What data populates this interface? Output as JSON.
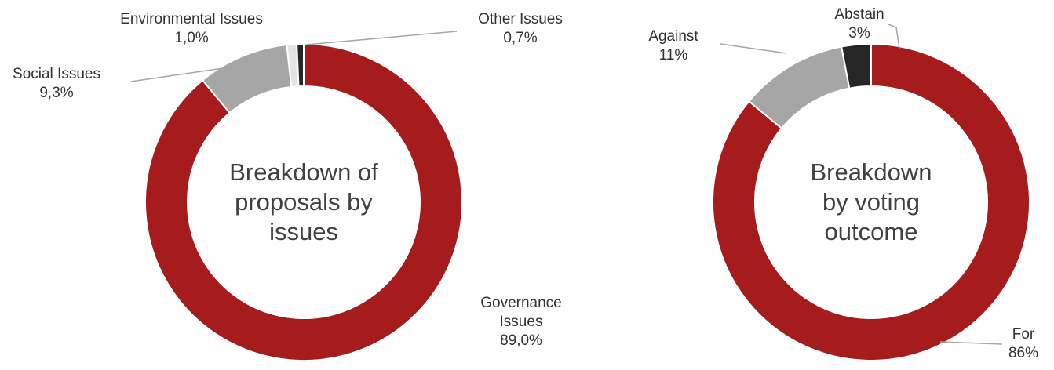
{
  "colors": {
    "red": "#a61b1b",
    "gray": "#a6a6a6",
    "light": "#e3e3e3",
    "dark": "#262626",
    "leader": "#a6a6a6",
    "text": "#333333",
    "center_text": "#404040"
  },
  "chart_data": [
    {
      "type": "pie",
      "donut": true,
      "center_label": [
        "Breakdown of",
        "proposals by",
        "issues"
      ],
      "slices": [
        {
          "label": [
            "Governance",
            "Issues"
          ],
          "value": 89.0,
          "display": "89,0%",
          "color": "#a61b1b"
        },
        {
          "label": [
            "Social Issues"
          ],
          "value": 9.3,
          "display": "9,3%",
          "color": "#a6a6a6"
        },
        {
          "label": [
            "Environmental Issues"
          ],
          "value": 1.0,
          "display": "1,0%",
          "color": "#e3e3e3"
        },
        {
          "label": [
            "Other Issues"
          ],
          "value": 0.7,
          "display": "0,7%",
          "color": "#262626"
        }
      ]
    },
    {
      "type": "pie",
      "donut": true,
      "center_label": [
        "Breakdown",
        "by voting",
        "outcome"
      ],
      "slices": [
        {
          "label": [
            "For"
          ],
          "value": 86,
          "display": "86%",
          "color": "#a61b1b"
        },
        {
          "label": [
            "Against"
          ],
          "value": 11,
          "display": "11%",
          "color": "#a6a6a6"
        },
        {
          "label": [
            "Abstain"
          ],
          "value": 3,
          "display": "3%",
          "color": "#262626"
        }
      ]
    }
  ]
}
